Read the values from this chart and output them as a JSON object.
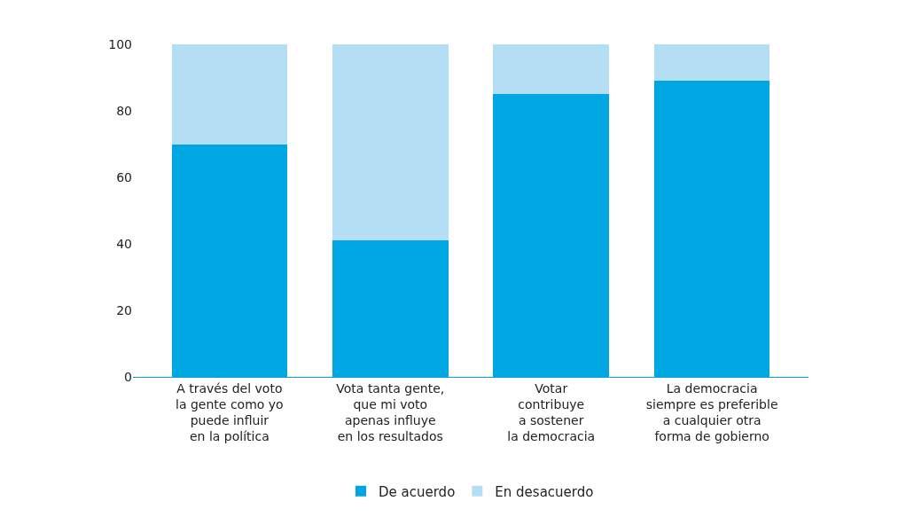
{
  "chart_data": {
    "type": "bar",
    "stacked": true,
    "categories": [
      "A través del voto\nla gente como yo\npuede influir\nen la política",
      "Vota tanta gente,\nque mi voto\napenas influye\nen los resultados",
      "Votar\ncontribuye\na sostener\nla democracia",
      "La democracia\nsiempre es preferible\na cualquier otra\nforma de gobierno"
    ],
    "series": [
      {
        "name": "De acuerdo",
        "color": "#00a6e2",
        "values": [
          70,
          41,
          85,
          89
        ]
      },
      {
        "name": "En desacuerdo",
        "color": "#b3def4",
        "values": [
          30,
          59,
          15,
          11
        ]
      }
    ],
    "ylim": [
      0,
      100
    ],
    "yticks": [
      0,
      20,
      40,
      60,
      80,
      100
    ],
    "legend": "bottom"
  }
}
